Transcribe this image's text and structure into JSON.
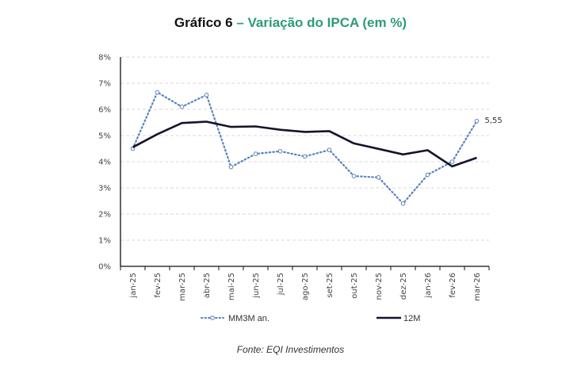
{
  "title": {
    "prefix": "Gráfico 6",
    "dash": " – ",
    "main": "Variação do IPCA (em %)",
    "prefix_color": "#111111",
    "accent_color": "#2e9b78"
  },
  "source": "Fonte: EQI Investimentos",
  "chart_data": {
    "type": "line",
    "title": "Gráfico 6 – Variação do IPCA (em %)",
    "xlabel": "",
    "ylabel": "",
    "categories": [
      "jan-25",
      "fev-25",
      "mar-25",
      "abr-25",
      "mai-25",
      "jun-25",
      "jul-25",
      "ago-25",
      "set-25",
      "out-25",
      "nov-25",
      "dez-25",
      "jan-26",
      "fev-26",
      "mar-26"
    ],
    "ylim": [
      0,
      8
    ],
    "yticks": [
      "0%",
      "1%",
      "2%",
      "3%",
      "4%",
      "5%",
      "6%",
      "7%",
      "8%"
    ],
    "grid": true,
    "legend_position": "bottom",
    "series": [
      {
        "name": "MM3M an.",
        "style": "dotted-markers",
        "color": "#5b82c0",
        "values": [
          4.5,
          6.65,
          6.1,
          6.55,
          3.8,
          4.3,
          4.4,
          4.2,
          4.45,
          3.45,
          3.4,
          2.4,
          3.5,
          4.0,
          5.55
        ]
      },
      {
        "name": "12M",
        "style": "solid",
        "color": "#14142e",
        "values": [
          4.55,
          5.05,
          5.48,
          5.53,
          5.33,
          5.35,
          5.22,
          5.14,
          5.17,
          4.7,
          4.49,
          4.28,
          4.44,
          3.82,
          4.15
        ]
      }
    ],
    "annotations": [
      {
        "series": "MM3M an.",
        "category": "mar-26",
        "text": "5,55"
      }
    ]
  }
}
